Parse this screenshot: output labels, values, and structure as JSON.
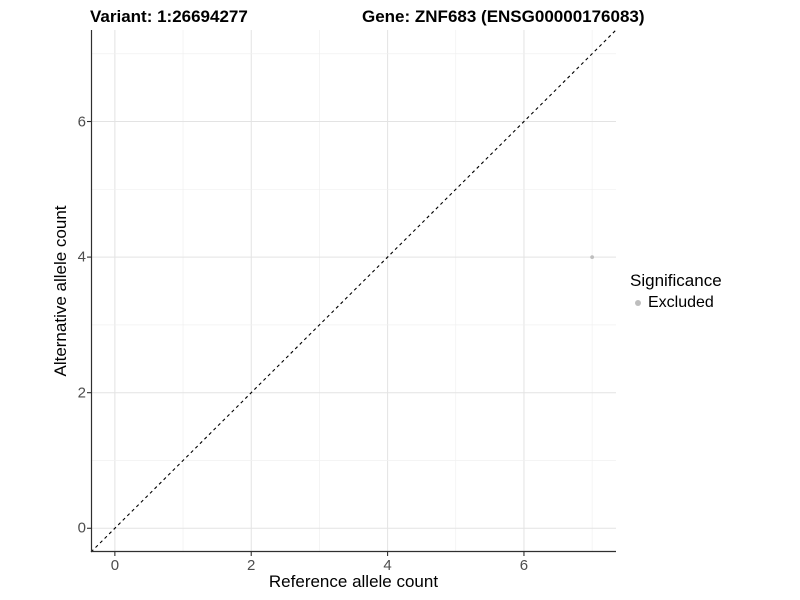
{
  "titles": {
    "variant": "Variant: 1:26694277",
    "gene": "Gene: ZNF683 (ENSG00000176083)"
  },
  "axes": {
    "x_label": "Reference allele count",
    "y_label": "Alternative allele count"
  },
  "legend": {
    "title": "Significance",
    "items": [
      {
        "label": "Excluded",
        "color": "#bebebe"
      }
    ]
  },
  "colors": {
    "background": "#ffffff",
    "grid_major": "#e3e3e3",
    "grid_minor": "#f0f0f0",
    "axis_line": "#2f2f2f",
    "tick_mark": "#2f2f2f",
    "tick_text": "#4d4d4d",
    "diagonal_line": "#000000",
    "point": "#bebebe"
  },
  "chart_data": {
    "type": "scatter",
    "title": "Variant: 1:26694277    Gene: ZNF683 (ENSG00000176083)",
    "xlabel": "Reference allele count",
    "ylabel": "Alternative allele count",
    "xlim": [
      -0.35,
      7.35
    ],
    "ylim": [
      -0.35,
      7.35
    ],
    "x_ticks": [
      0,
      2,
      4,
      6
    ],
    "y_ticks": [
      0,
      2,
      4,
      6
    ],
    "grid_interval": 1,
    "grid": true,
    "legend_position": "right",
    "series": [
      {
        "name": "Excluded",
        "color": "#bebebe",
        "points": [
          {
            "x": 7,
            "y": 4
          }
        ]
      }
    ],
    "reference_line": {
      "type": "identity",
      "slope": 1,
      "intercept": 0,
      "style": "dashed",
      "color": "#000000"
    }
  }
}
